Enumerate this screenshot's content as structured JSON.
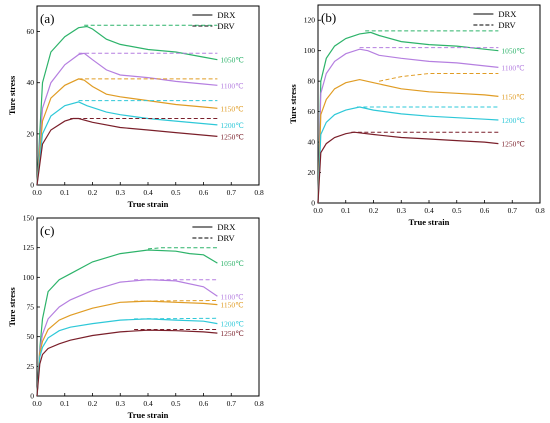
{
  "legend": {
    "drx": "DRX",
    "drv": "DRV"
  },
  "chart_data": [
    {
      "type": "line",
      "panel_label": "(a)",
      "xlabel": "True strain",
      "ylabel": "Ture stress",
      "xlim": [
        0,
        0.8
      ],
      "ylim": [
        0,
        70
      ],
      "xticks": [
        0.0,
        0.1,
        0.2,
        0.3,
        0.4,
        0.5,
        0.6,
        0.7,
        0.8
      ],
      "yticks": [
        0,
        20,
        40,
        60
      ],
      "legend_position": "top-right",
      "series": [
        {
          "name": "1050℃",
          "color": "#2db36a",
          "drx": [
            [
              0,
              0
            ],
            [
              0.02,
              40
            ],
            [
              0.05,
              52
            ],
            [
              0.1,
              58
            ],
            [
              0.15,
              61.5
            ],
            [
              0.18,
              62
            ],
            [
              0.2,
              61
            ],
            [
              0.25,
              57
            ],
            [
              0.3,
              55
            ],
            [
              0.4,
              53
            ],
            [
              0.5,
              52
            ],
            [
              0.6,
              50
            ],
            [
              0.65,
              49
            ]
          ],
          "drv": [
            [
              0.17,
              62.5
            ],
            [
              0.65,
              62.5
            ]
          ]
        },
        {
          "name": "1100℃",
          "color": "#b57fe0",
          "drx": [
            [
              0,
              0
            ],
            [
              0.02,
              30
            ],
            [
              0.05,
              40
            ],
            [
              0.1,
              47
            ],
            [
              0.15,
              51
            ],
            [
              0.17,
              51.5
            ],
            [
              0.2,
              49
            ],
            [
              0.25,
              45
            ],
            [
              0.3,
              43
            ],
            [
              0.4,
              42
            ],
            [
              0.5,
              40.5
            ],
            [
              0.6,
              39.5
            ],
            [
              0.65,
              39
            ]
          ],
          "drv": [
            [
              0.15,
              51.5
            ],
            [
              0.65,
              51.5
            ]
          ]
        },
        {
          "name": "1150℃",
          "color": "#e09c24",
          "drx": [
            [
              0,
              0
            ],
            [
              0.02,
              25
            ],
            [
              0.05,
              34
            ],
            [
              0.1,
              39
            ],
            [
              0.15,
              41.5
            ],
            [
              0.17,
              41
            ],
            [
              0.2,
              38.5
            ],
            [
              0.25,
              35.5
            ],
            [
              0.3,
              34.5
            ],
            [
              0.4,
              33
            ],
            [
              0.5,
              31.5
            ],
            [
              0.6,
              30.5
            ],
            [
              0.65,
              30
            ]
          ],
          "drv": [
            [
              0.15,
              41.5
            ],
            [
              0.65,
              41.5
            ]
          ]
        },
        {
          "name": "1200℃",
          "color": "#2ec8d8",
          "drx": [
            [
              0,
              0
            ],
            [
              0.02,
              20
            ],
            [
              0.05,
              27
            ],
            [
              0.1,
              31
            ],
            [
              0.15,
              32.5
            ],
            [
              0.18,
              31
            ],
            [
              0.25,
              28.5
            ],
            [
              0.3,
              27.5
            ],
            [
              0.4,
              26
            ],
            [
              0.5,
              25
            ],
            [
              0.6,
              24
            ],
            [
              0.65,
              23.5
            ]
          ],
          "drv": [
            [
              0.15,
              33
            ],
            [
              0.65,
              33
            ]
          ]
        },
        {
          "name": "1250℃",
          "color": "#7a1f2a",
          "drx": [
            [
              0,
              0
            ],
            [
              0.02,
              16
            ],
            [
              0.05,
              21.5
            ],
            [
              0.1,
              25
            ],
            [
              0.13,
              26
            ],
            [
              0.15,
              26
            ],
            [
              0.2,
              24.5
            ],
            [
              0.3,
              22.5
            ],
            [
              0.4,
              21.5
            ],
            [
              0.5,
              20.5
            ],
            [
              0.6,
              19.5
            ],
            [
              0.65,
              19
            ]
          ],
          "drv": [
            [
              0.12,
              26
            ],
            [
              0.65,
              26
            ]
          ]
        }
      ]
    },
    {
      "type": "line",
      "panel_label": "(b)",
      "xlabel": "True strain",
      "ylabel": "Ture stress",
      "xlim": [
        0,
        0.8
      ],
      "ylim": [
        0,
        130
      ],
      "xticks": [
        0.0,
        0.1,
        0.2,
        0.3,
        0.4,
        0.5,
        0.6,
        0.7,
        0.8
      ],
      "yticks": [
        0,
        20,
        40,
        60,
        80,
        100,
        120
      ],
      "legend_position": "top-right",
      "series": [
        {
          "name": "1050℃",
          "color": "#2db36a",
          "drx": [
            [
              0,
              0
            ],
            [
              0.01,
              80
            ],
            [
              0.03,
              95
            ],
            [
              0.06,
              103
            ],
            [
              0.1,
              108
            ],
            [
              0.15,
              111
            ],
            [
              0.19,
              112
            ],
            [
              0.22,
              110
            ],
            [
              0.3,
              106
            ],
            [
              0.4,
              104
            ],
            [
              0.5,
              103
            ],
            [
              0.6,
              101
            ],
            [
              0.65,
              100
            ]
          ],
          "drv": [
            [
              0.17,
              113
            ],
            [
              0.65,
              113
            ]
          ]
        },
        {
          "name": "1100℃",
          "color": "#b57fe0",
          "drx": [
            [
              0,
              0
            ],
            [
              0.01,
              72
            ],
            [
              0.03,
              85
            ],
            [
              0.06,
              93
            ],
            [
              0.1,
              98
            ],
            [
              0.15,
              101
            ],
            [
              0.18,
              100
            ],
            [
              0.22,
              97
            ],
            [
              0.3,
              95
            ],
            [
              0.4,
              93
            ],
            [
              0.5,
              92
            ],
            [
              0.6,
              90
            ],
            [
              0.65,
              89
            ]
          ],
          "drv": [
            [
              0.15,
              102
            ],
            [
              0.65,
              102
            ]
          ]
        },
        {
          "name": "1150℃",
          "color": "#e09c24",
          "drx": [
            [
              0,
              0
            ],
            [
              0.01,
              58
            ],
            [
              0.03,
              68
            ],
            [
              0.06,
              75
            ],
            [
              0.1,
              79
            ],
            [
              0.15,
              81
            ],
            [
              0.2,
              79
            ],
            [
              0.3,
              75
            ],
            [
              0.4,
              73
            ],
            [
              0.5,
              72
            ],
            [
              0.6,
              71
            ],
            [
              0.65,
              70
            ]
          ],
          "drv": [
            [
              0.22,
              80
            ],
            [
              0.3,
              83
            ],
            [
              0.4,
              85
            ],
            [
              0.65,
              85
            ]
          ]
        },
        {
          "name": "1200℃",
          "color": "#2ec8d8",
          "drx": [
            [
              0,
              0
            ],
            [
              0.01,
              45
            ],
            [
              0.03,
              53
            ],
            [
              0.06,
              58
            ],
            [
              0.1,
              61
            ],
            [
              0.15,
              63
            ],
            [
              0.2,
              61
            ],
            [
              0.3,
              58.5
            ],
            [
              0.4,
              57
            ],
            [
              0.5,
              56
            ],
            [
              0.6,
              55
            ],
            [
              0.65,
              54.5
            ]
          ],
          "drv": [
            [
              0.14,
              63
            ],
            [
              0.65,
              63
            ]
          ]
        },
        {
          "name": "1250℃",
          "color": "#7a1f2a",
          "drx": [
            [
              0,
              0
            ],
            [
              0.01,
              33
            ],
            [
              0.03,
              39
            ],
            [
              0.06,
              43
            ],
            [
              0.1,
              45.5
            ],
            [
              0.13,
              46.5
            ],
            [
              0.2,
              45
            ],
            [
              0.3,
              43
            ],
            [
              0.4,
              42
            ],
            [
              0.5,
              41
            ],
            [
              0.6,
              40
            ],
            [
              0.65,
              39
            ]
          ],
          "drv": [
            [
              0.12,
              46.5
            ],
            [
              0.65,
              46.5
            ]
          ]
        }
      ]
    },
    {
      "type": "line",
      "panel_label": "(c)",
      "xlabel": "True strain",
      "ylabel": "Ture stress",
      "xlim": [
        0,
        0.8
      ],
      "ylim": [
        0,
        150
      ],
      "xticks": [
        0.0,
        0.1,
        0.2,
        0.3,
        0.4,
        0.5,
        0.6,
        0.7,
        0.8
      ],
      "yticks": [
        0,
        25,
        50,
        75,
        100,
        125,
        150
      ],
      "legend_position": "top-right",
      "series": [
        {
          "name": "1050℃",
          "color": "#2db36a",
          "drx": [
            [
              0,
              0
            ],
            [
              0.01,
              40
            ],
            [
              0.02,
              65
            ],
            [
              0.04,
              88
            ],
            [
              0.08,
              98
            ],
            [
              0.12,
              103
            ],
            [
              0.2,
              113
            ],
            [
              0.3,
              120
            ],
            [
              0.4,
              123
            ],
            [
              0.5,
              122
            ],
            [
              0.55,
              120
            ],
            [
              0.6,
              119
            ],
            [
              0.65,
              112
            ]
          ],
          "drv": [
            [
              0.4,
              124
            ],
            [
              0.45,
              125
            ],
            [
              0.65,
              125
            ]
          ]
        },
        {
          "name": "1100℃",
          "color": "#b57fe0",
          "drx": [
            [
              0,
              0
            ],
            [
              0.01,
              38
            ],
            [
              0.02,
              52
            ],
            [
              0.04,
              65
            ],
            [
              0.08,
              75
            ],
            [
              0.12,
              81
            ],
            [
              0.2,
              89
            ],
            [
              0.3,
              96
            ],
            [
              0.4,
              98
            ],
            [
              0.5,
              97
            ],
            [
              0.6,
              92
            ],
            [
              0.65,
              84
            ]
          ],
          "drv": [
            [
              0.35,
              98
            ],
            [
              0.65,
              98
            ]
          ]
        },
        {
          "name": "1150℃",
          "color": "#e09c24",
          "drx": [
            [
              0,
              0
            ],
            [
              0.01,
              36
            ],
            [
              0.02,
              46
            ],
            [
              0.04,
              56
            ],
            [
              0.08,
              64
            ],
            [
              0.12,
              68
            ],
            [
              0.2,
              74
            ],
            [
              0.3,
              79
            ],
            [
              0.4,
              80
            ],
            [
              0.5,
              79
            ],
            [
              0.6,
              78
            ],
            [
              0.65,
              77
            ]
          ],
          "drv": [
            [
              0.35,
              80
            ],
            [
              0.65,
              80.5
            ]
          ]
        },
        {
          "name": "1200℃",
          "color": "#2ec8d8",
          "drx": [
            [
              0,
              0
            ],
            [
              0.01,
              33
            ],
            [
              0.02,
              41
            ],
            [
              0.04,
              49
            ],
            [
              0.08,
              55
            ],
            [
              0.12,
              58
            ],
            [
              0.2,
              61
            ],
            [
              0.3,
              64
            ],
            [
              0.4,
              65
            ],
            [
              0.5,
              64
            ],
            [
              0.6,
              63
            ],
            [
              0.65,
              61
            ]
          ],
          "drv": [
            [
              0.35,
              65
            ],
            [
              0.65,
              65.5
            ]
          ]
        },
        {
          "name": "1250℃",
          "color": "#7a1f2a",
          "drx": [
            [
              0,
              0
            ],
            [
              0.01,
              27
            ],
            [
              0.02,
              35
            ],
            [
              0.04,
              40
            ],
            [
              0.08,
              44
            ],
            [
              0.12,
              47
            ],
            [
              0.2,
              51
            ],
            [
              0.3,
              54
            ],
            [
              0.4,
              55.5
            ],
            [
              0.5,
              55
            ],
            [
              0.6,
              54
            ],
            [
              0.65,
              53
            ]
          ],
          "drv": [
            [
              0.35,
              56
            ],
            [
              0.65,
              56
            ]
          ]
        }
      ]
    }
  ]
}
